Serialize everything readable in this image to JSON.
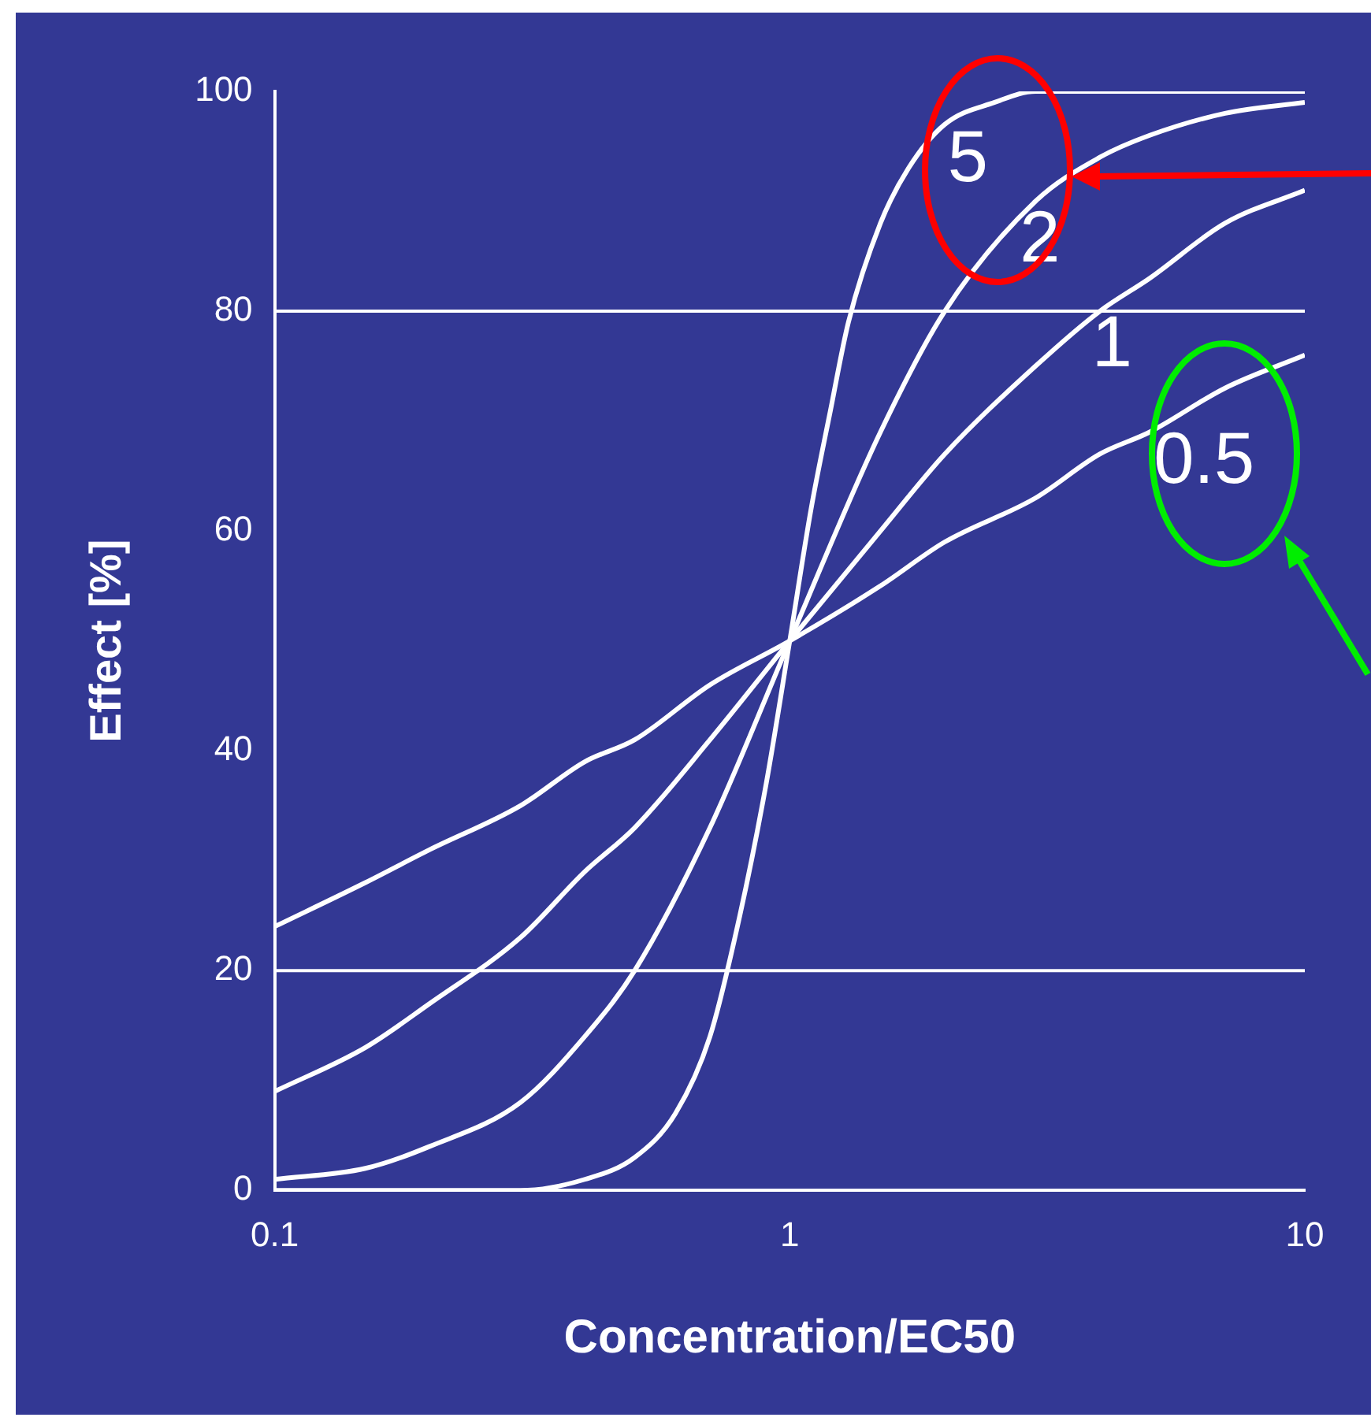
{
  "chart_data": {
    "type": "line",
    "xlabel": "Concentration/EC50",
    "ylabel": "Effect [%]",
    "log": "x",
    "xlim": [
      0.1,
      10
    ],
    "xticks": [
      0.1,
      1,
      10
    ],
    "ylim": [
      0,
      100
    ],
    "yticks": [
      0,
      20,
      40,
      60,
      80,
      100
    ],
    "grid": false,
    "legend": false,
    "marker": "none",
    "line_style": "solid",
    "ref_lines": [
      {
        "axis": "y",
        "value": 20,
        "color": "#ffffff"
      },
      {
        "axis": "y",
        "value": 80,
        "color": "#ffffff"
      }
    ],
    "series": [
      {
        "name": "5",
        "color": "#ffffff",
        "x": [
          0.1,
          0.2,
          0.3,
          0.4,
          0.5,
          0.6,
          0.7,
          0.8,
          0.9,
          1,
          1.1,
          1.2,
          1.3,
          1.5,
          1.7,
          2,
          2.5,
          3,
          4,
          5,
          7,
          10
        ],
        "values": [
          0,
          0,
          0,
          1,
          3,
          7,
          14,
          25,
          37,
          50,
          62,
          71,
          79,
          88,
          93,
          97,
          99,
          100,
          100,
          100,
          100,
          100
        ]
      },
      {
        "name": "2",
        "color": "#ffffff",
        "x": [
          0.1,
          0.15,
          0.2,
          0.3,
          0.4,
          0.5,
          0.7,
          1,
          1.5,
          2,
          3,
          4,
          5,
          7,
          10
        ],
        "values": [
          1,
          2,
          4,
          8,
          14,
          20,
          33,
          50,
          69,
          80,
          90,
          94,
          96,
          98,
          99
        ]
      },
      {
        "name": "1",
        "color": "#ffffff",
        "x": [
          0.1,
          0.15,
          0.2,
          0.3,
          0.4,
          0.5,
          0.7,
          1,
          1.5,
          2,
          3,
          4,
          5,
          7,
          10
        ],
        "values": [
          9,
          13,
          17,
          23,
          29,
          33,
          41,
          50,
          60,
          67,
          75,
          80,
          83,
          88,
          91
        ]
      },
      {
        "name": "0.5",
        "color": "#ffffff",
        "x": [
          0.1,
          0.15,
          0.2,
          0.3,
          0.4,
          0.5,
          0.7,
          1,
          1.5,
          2,
          3,
          4,
          5,
          7,
          10
        ],
        "values": [
          24,
          28,
          31,
          35,
          39,
          41,
          46,
          50,
          55,
          59,
          63,
          67,
          69,
          73,
          76
        ]
      }
    ]
  }
}
